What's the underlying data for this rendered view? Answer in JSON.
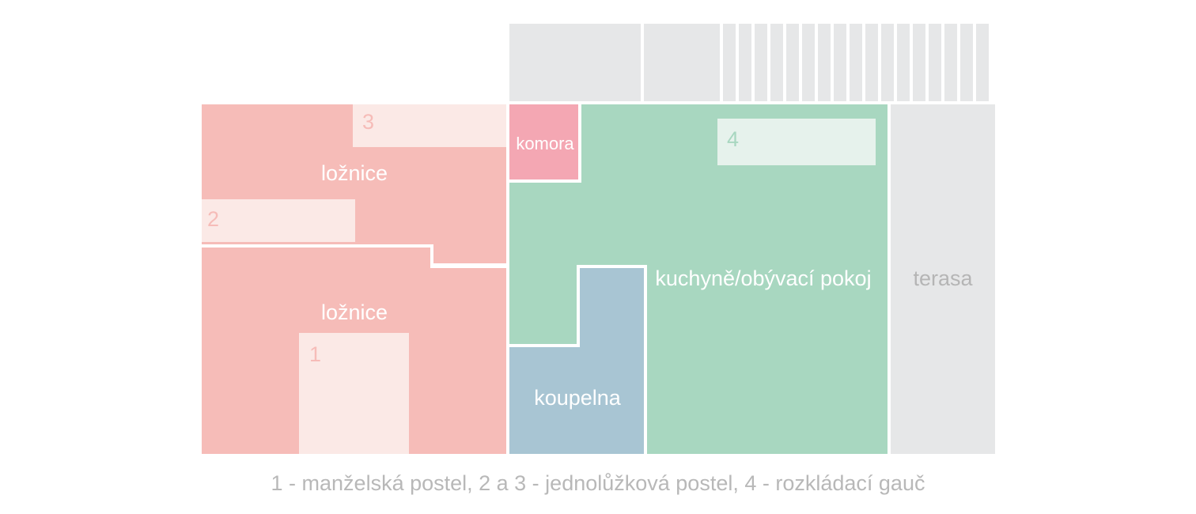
{
  "colors": {
    "bedroom": "#f6bcb8",
    "bedroom_furniture": "#fbe9e6",
    "bedroom_num": "#f6bcb8",
    "pantry": "#f4a7b3",
    "living": "#a8d7c0",
    "living_furniture": "#e6f2ec",
    "living_num": "#a8d7c0",
    "bathroom": "#a8c5d3",
    "terrace": "#e6e7e8",
    "terrace_label": "#b5b5b5",
    "wall": "#ffffff"
  },
  "rooms": {
    "bedroom_top": "ložnice",
    "bedroom_bottom": "ložnice",
    "pantry": "komora",
    "living": "kuchyně/obývací pokoj",
    "bathroom": "koupelna",
    "terrace": "terasa"
  },
  "beds": {
    "bed1": "1",
    "bed2": "2",
    "bed3": "3",
    "bed4": "4"
  },
  "legend": "1 - manželská postel,  2 a 3 - jednolůžková postel, 4 - rozkládací gauč"
}
